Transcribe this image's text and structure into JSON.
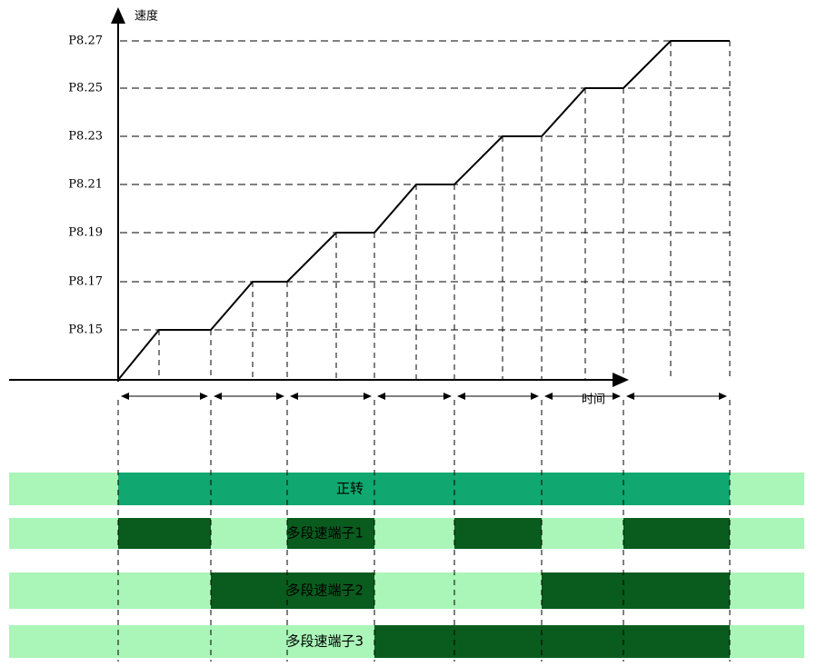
{
  "speed_axis_label": "速度",
  "time_axis_label": "时间",
  "levels": [
    "P8.27",
    "P8.25",
    "P8.23",
    "P8.21",
    "P8.19",
    "P8.17",
    "P8.15"
  ],
  "signals": [
    "正转",
    "多段速端子1",
    "多段速端子2",
    "多段速端子3"
  ]
}
